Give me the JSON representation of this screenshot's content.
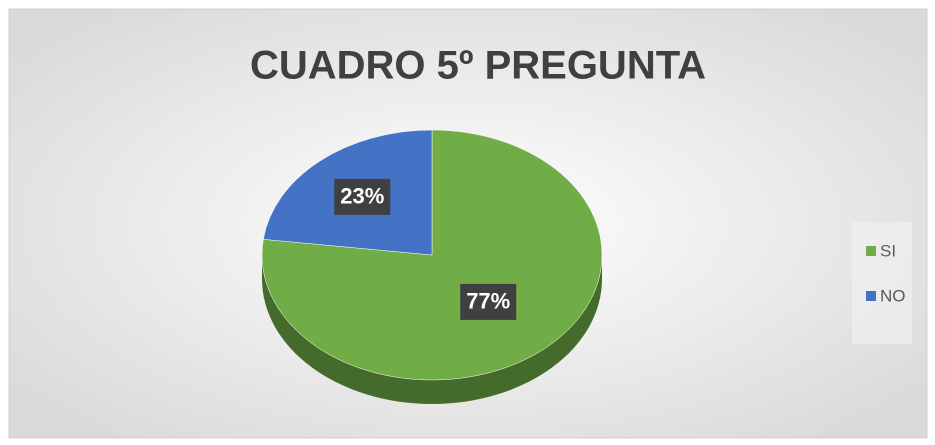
{
  "chart_data": {
    "type": "pie",
    "title": "CUADRO 5º PREGUNTA",
    "categories": [
      "SI",
      "NO"
    ],
    "values": [
      77,
      23
    ],
    "value_labels": [
      "77%",
      "23%"
    ],
    "colors": [
      "#70ad47",
      "#4472c4"
    ],
    "legend": "right"
  }
}
